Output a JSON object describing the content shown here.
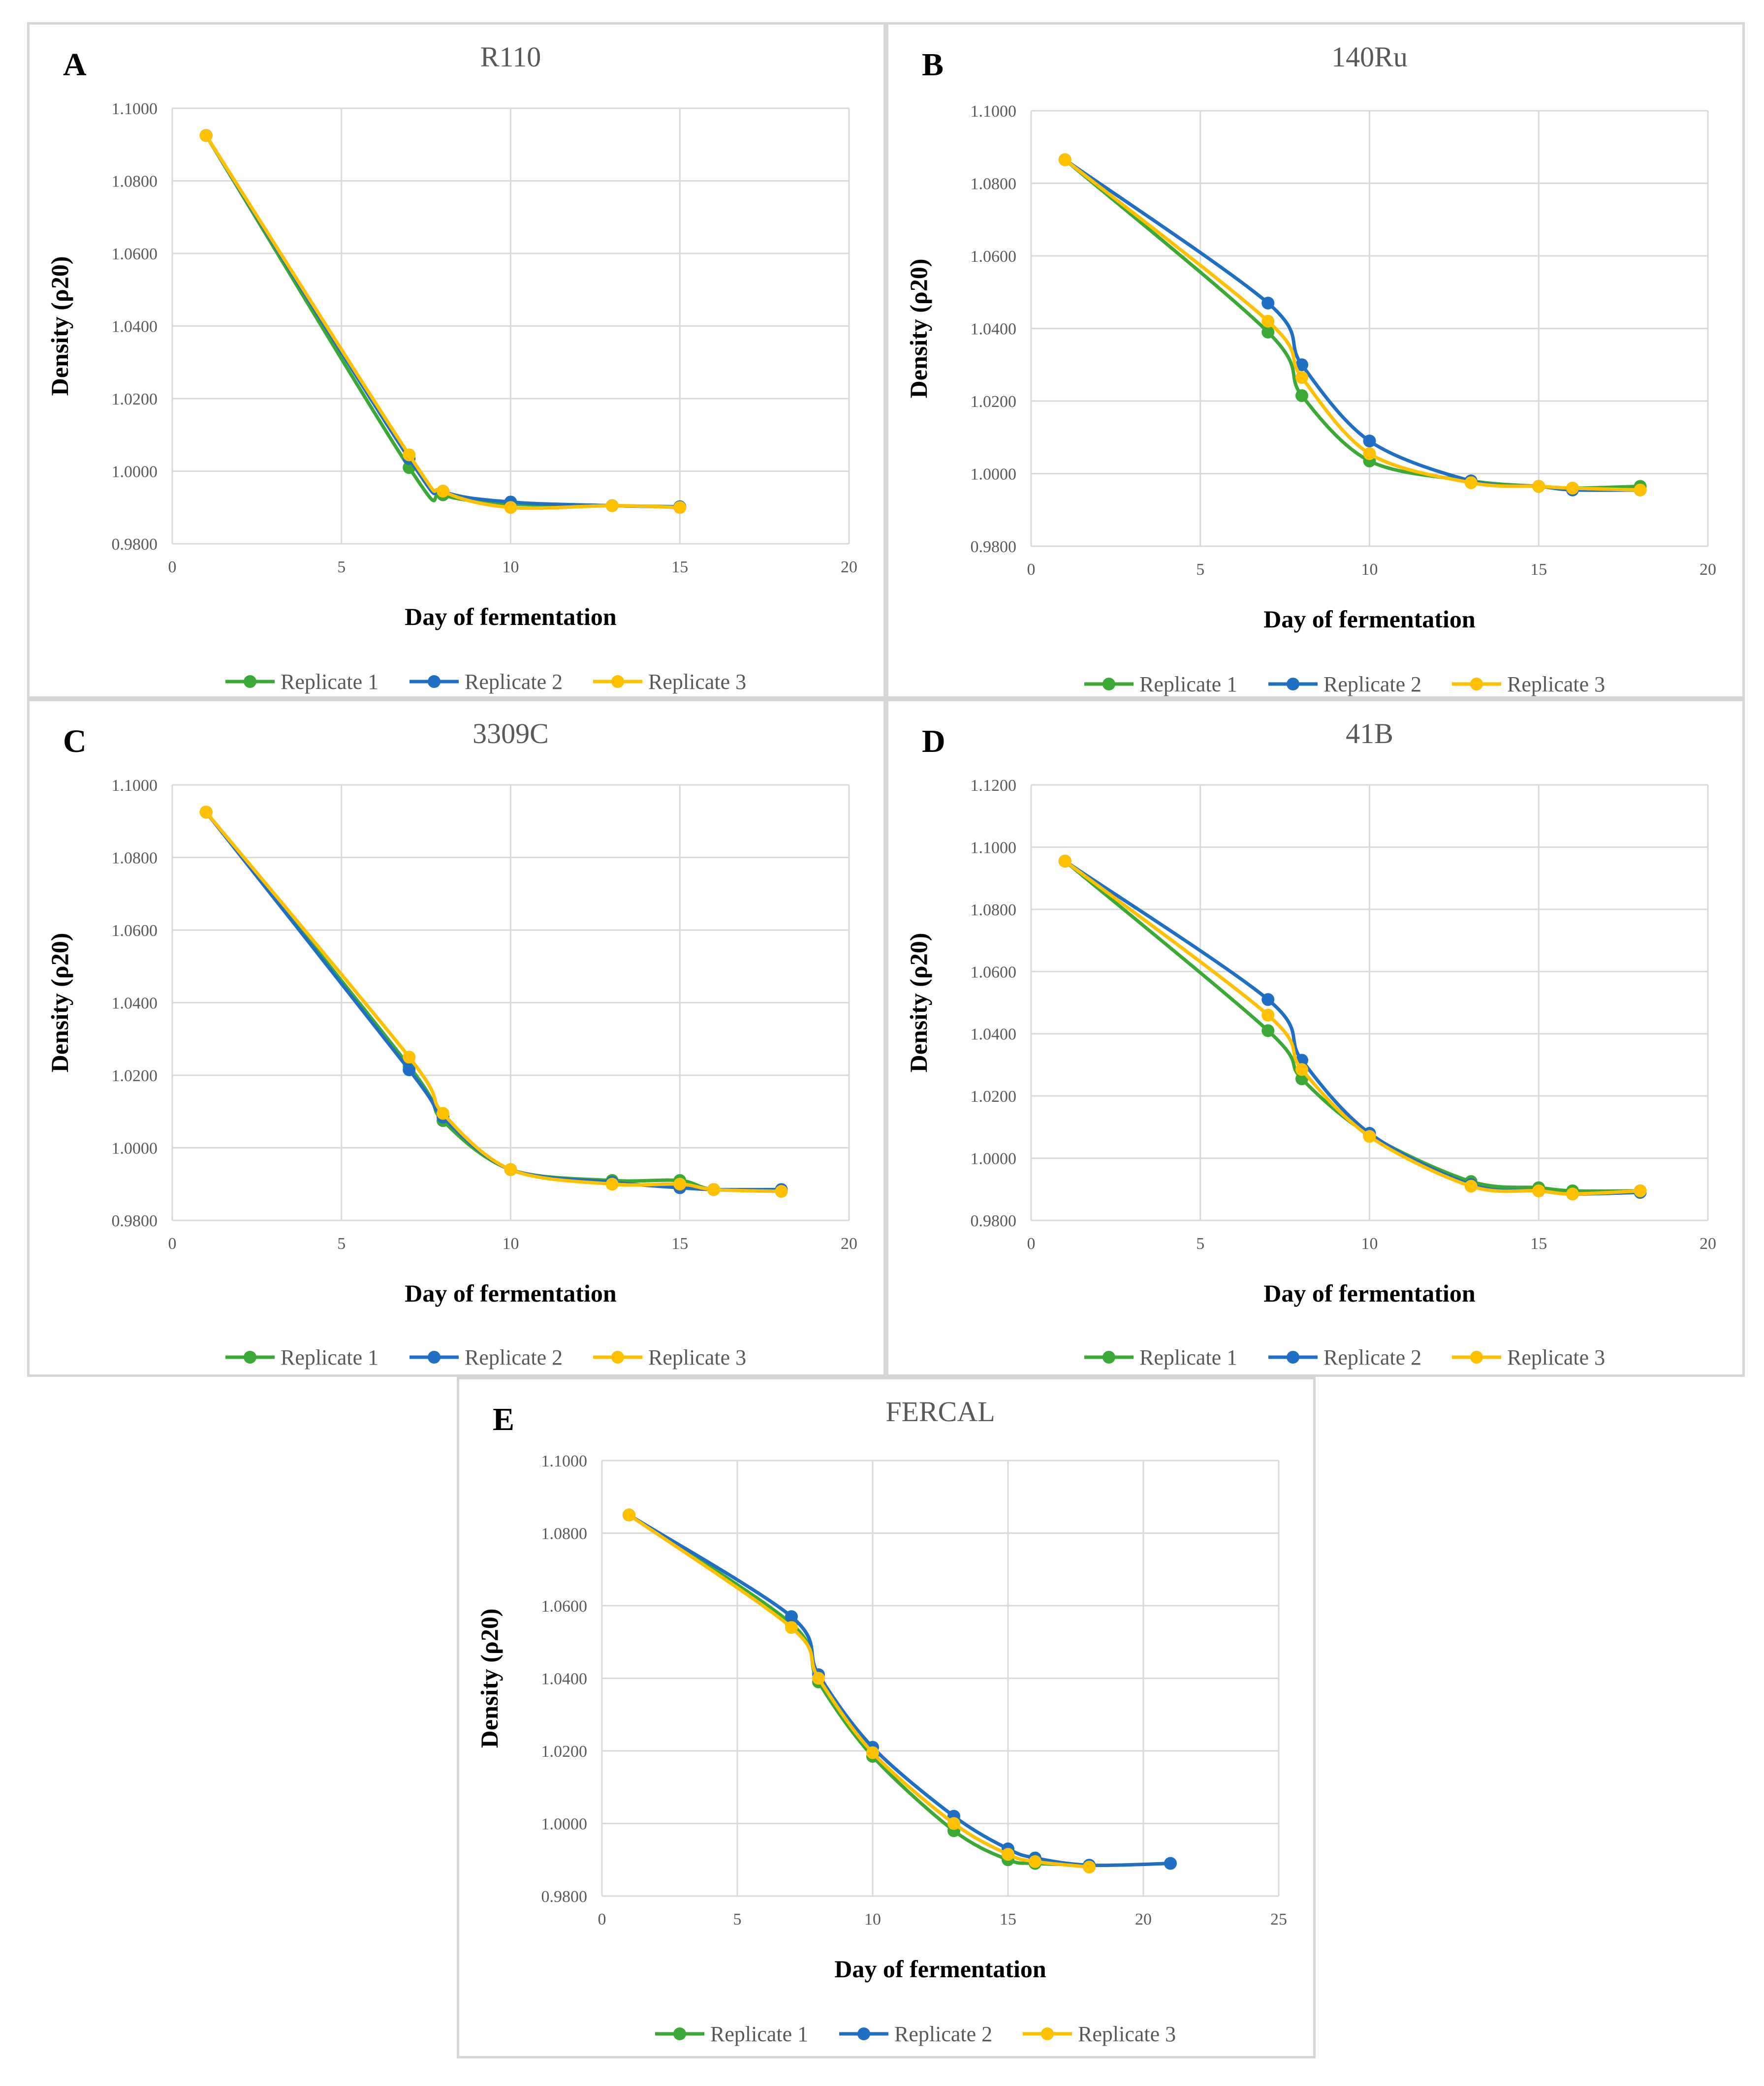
{
  "colors": {
    "replicate1": "#3aa935",
    "replicate2": "#1f6fc5",
    "replicate3": "#ffc000",
    "grid": "#d9d9d9"
  },
  "legend": [
    "Replicate 1",
    "Replicate 2",
    "Replicate 3"
  ],
  "chart_data": [
    {
      "letter": "A",
      "title": "R110",
      "type": "line",
      "xlabel": "Day of fermentation",
      "ylabel": "Density (ρ20)",
      "xlim": [
        0,
        20
      ],
      "xticks": [
        0,
        5,
        10,
        15,
        20
      ],
      "ylim": [
        0.98,
        1.1
      ],
      "yticks": [
        "0.9800",
        "1.0000",
        "1.0200",
        "1.0400",
        "1.0600",
        "1.0800",
        "1.1000"
      ],
      "series": [
        {
          "name": "Replicate 1",
          "x": [
            1,
            7,
            8,
            10,
            13,
            15
          ],
          "y": [
            1.0925,
            1.001,
            0.9935,
            0.991,
            0.9905,
            0.9902
          ]
        },
        {
          "name": "Replicate 2",
          "x": [
            1,
            7,
            8,
            10,
            13,
            15
          ],
          "y": [
            1.0925,
            1.0035,
            0.9945,
            0.9915,
            0.9905,
            0.9902
          ]
        },
        {
          "name": "Replicate 3",
          "x": [
            1,
            7,
            8,
            10,
            13,
            15
          ],
          "y": [
            1.0925,
            1.0045,
            0.9945,
            0.99,
            0.9905,
            0.99
          ]
        }
      ]
    },
    {
      "letter": "B",
      "title": "140Ru",
      "type": "line",
      "xlabel": "Day of fermentation",
      "ylabel": "Density (ρ20)",
      "xlim": [
        0,
        20
      ],
      "xticks": [
        0,
        5,
        10,
        15,
        20
      ],
      "ylim": [
        0.98,
        1.1
      ],
      "yticks": [
        "0.9800",
        "1.0000",
        "1.0200",
        "1.0400",
        "1.0600",
        "1.0800",
        "1.1000"
      ],
      "series": [
        {
          "name": "Replicate 1",
          "x": [
            1,
            7,
            8,
            10,
            13,
            15,
            16,
            18
          ],
          "y": [
            1.0865,
            1.039,
            1.0215,
            1.0035,
            0.998,
            0.9965,
            0.996,
            0.9965
          ]
        },
        {
          "name": "Replicate 2",
          "x": [
            1,
            7,
            8,
            10,
            13,
            15,
            16,
            18
          ],
          "y": [
            1.0865,
            1.047,
            1.03,
            1.009,
            0.998,
            0.9965,
            0.9955,
            0.9955
          ]
        },
        {
          "name": "Replicate 3",
          "x": [
            1,
            7,
            8,
            10,
            13,
            15,
            16,
            18
          ],
          "y": [
            1.0865,
            1.042,
            1.0265,
            1.0055,
            0.9975,
            0.9965,
            0.996,
            0.9955
          ]
        }
      ]
    },
    {
      "letter": "C",
      "title": "3309C",
      "type": "line",
      "xlabel": "Day of fermentation",
      "ylabel": "Density (ρ20)",
      "xlim": [
        0,
        20
      ],
      "xticks": [
        0,
        5,
        10,
        15,
        20
      ],
      "ylim": [
        0.98,
        1.1
      ],
      "yticks": [
        "0.9800",
        "1.0000",
        "1.0200",
        "1.0400",
        "1.0600",
        "1.0800",
        "1.1000"
      ],
      "series": [
        {
          "name": "Replicate 1",
          "x": [
            1,
            7,
            8,
            10,
            13,
            15,
            16,
            18
          ],
          "y": [
            1.0925,
            1.0225,
            1.0075,
            0.994,
            0.991,
            0.991,
            0.9885,
            0.9885
          ]
        },
        {
          "name": "Replicate 2",
          "x": [
            1,
            7,
            8,
            10,
            13,
            15,
            16,
            18
          ],
          "y": [
            1.0925,
            1.0215,
            1.0085,
            0.994,
            0.9905,
            0.989,
            0.9885,
            0.9885
          ]
        },
        {
          "name": "Replicate 3",
          "x": [
            1,
            7,
            8,
            10,
            13,
            15,
            16,
            18
          ],
          "y": [
            1.0925,
            1.025,
            1.0095,
            0.994,
            0.99,
            0.99,
            0.9885,
            0.988
          ]
        }
      ]
    },
    {
      "letter": "D",
      "title": "41B",
      "type": "line",
      "xlabel": "Day of fermentation",
      "ylabel": "Density (ρ20)",
      "xlim": [
        0,
        20
      ],
      "xticks": [
        0,
        5,
        10,
        15,
        20
      ],
      "ylim": [
        0.98,
        1.12
      ],
      "yticks": [
        "0.9800",
        "1.0000",
        "1.0200",
        "1.0400",
        "1.0600",
        "1.0800",
        "1.1000",
        "1.1200"
      ],
      "series": [
        {
          "name": "Replicate 1",
          "x": [
            1,
            7,
            8,
            10,
            13,
            15,
            16,
            18
          ],
          "y": [
            1.0955,
            1.041,
            1.0255,
            1.0075,
            0.9925,
            0.9905,
            0.9895,
            0.9895
          ]
        },
        {
          "name": "Replicate 2",
          "x": [
            1,
            7,
            8,
            10,
            13,
            15,
            16,
            18
          ],
          "y": [
            1.0955,
            1.051,
            1.0315,
            1.008,
            0.9915,
            0.9895,
            0.9885,
            0.989
          ]
        },
        {
          "name": "Replicate 3",
          "x": [
            1,
            7,
            8,
            10,
            13,
            15,
            16,
            18
          ],
          "y": [
            1.0955,
            1.046,
            1.0285,
            1.007,
            0.991,
            0.9895,
            0.9885,
            0.9895
          ]
        }
      ]
    },
    {
      "letter": "E",
      "title": "FERCAL",
      "type": "line",
      "xlabel": "Day of fermentation",
      "ylabel": "Density (ρ20)",
      "xlim": [
        0,
        25
      ],
      "xticks": [
        0,
        5,
        10,
        15,
        20,
        25
      ],
      "ylim": [
        0.98,
        1.1
      ],
      "yticks": [
        "0.9800",
        "1.0000",
        "1.0200",
        "1.0400",
        "1.0600",
        "1.0800",
        "1.1000"
      ],
      "series": [
        {
          "name": "Replicate 1",
          "x": [
            1,
            7,
            8,
            10,
            13,
            15,
            16,
            18
          ],
          "y": [
            1.085,
            1.055,
            1.039,
            1.0185,
            0.998,
            0.99,
            0.989,
            0.9885
          ]
        },
        {
          "name": "Replicate 2",
          "x": [
            1,
            7,
            8,
            10,
            13,
            15,
            16,
            18,
            21
          ],
          "y": [
            1.085,
            1.057,
            1.041,
            1.021,
            1.002,
            0.993,
            0.9905,
            0.9885,
            0.989
          ]
        },
        {
          "name": "Replicate 3",
          "x": [
            1,
            7,
            8,
            10,
            13,
            15,
            16,
            18
          ],
          "y": [
            1.085,
            1.054,
            1.04,
            1.0195,
            1.0,
            0.9915,
            0.9895,
            0.988
          ]
        }
      ]
    }
  ]
}
